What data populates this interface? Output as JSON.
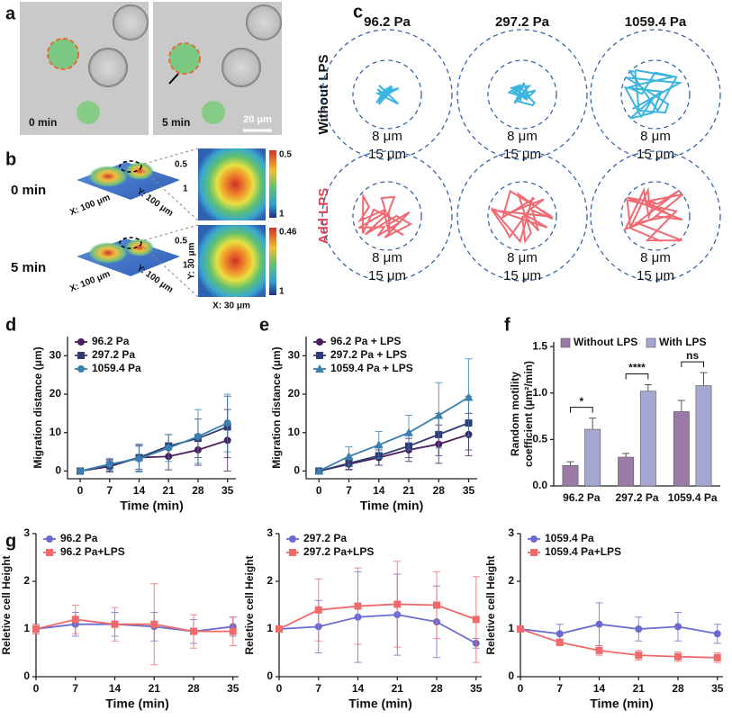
{
  "panel_labels": [
    "a",
    "b",
    "c",
    "d",
    "e",
    "f",
    "g"
  ],
  "panel_a": {
    "times": [
      "0 min",
      "5 min"
    ],
    "scale_bar": "20 μm"
  },
  "panel_b": {
    "times": [
      "0 min",
      "5 min"
    ],
    "surface_x": "X: 100 μm",
    "surface_y": "Y: 100 μm",
    "z_ticks": [
      0.5,
      1
    ],
    "colorbar_top": [
      0.5,
      0.46
    ],
    "colorbar_bottom": 1,
    "heatmap_x": "X: 30 μm",
    "heatmap_y": "Y: 30 μm"
  },
  "panel_c": {
    "columns": [
      "96.2 Pa",
      "297.2 Pa",
      "1059.4 Pa"
    ],
    "rows": [
      "Without LPS",
      "Add LPS"
    ],
    "inner": "8 μm",
    "outer": "15 μm"
  },
  "chart_data": [
    {
      "type": "line",
      "xlabel": "Time (min)",
      "ylabel": "Migration distance (μm)",
      "x": [
        0,
        7,
        14,
        21,
        28,
        35
      ],
      "xlim": [
        -3,
        37
      ],
      "xticks": [
        0,
        7,
        14,
        21,
        28,
        35
      ],
      "ylim": [
        -2,
        35
      ],
      "yticks": [
        0,
        10,
        20,
        30
      ],
      "series": [
        {
          "name": "96.2 Pa",
          "color": "#4a1d5c",
          "marker": "circle",
          "values": [
            0,
            1.2,
            3.5,
            3.8,
            5.5,
            8
          ],
          "errors": [
            0.5,
            1.5,
            3,
            3.5,
            4,
            8
          ]
        },
        {
          "name": "297.2 Pa",
          "color": "#2f3c73",
          "marker": "square",
          "values": [
            0,
            1.5,
            3.5,
            6.5,
            8.5,
            11.5
          ],
          "errors": [
            0.5,
            1.5,
            3.5,
            3,
            5,
            8
          ]
        },
        {
          "name": "1059.4 Pa",
          "color": "#3b7fae",
          "marker": "circle",
          "values": [
            0,
            1.8,
            3.2,
            6,
            9,
            12.5
          ],
          "errors": [
            0.5,
            1.5,
            3.5,
            3.5,
            7,
            7.5
          ]
        }
      ]
    },
    {
      "type": "line",
      "xlabel": "Time (min)",
      "ylabel": "Migration distance (μm)",
      "x": [
        0,
        7,
        14,
        21,
        28,
        35
      ],
      "xlim": [
        -3,
        37
      ],
      "xticks": [
        0,
        7,
        14,
        21,
        28,
        35
      ],
      "ylim": [
        -2,
        35
      ],
      "yticks": [
        0,
        10,
        20,
        30
      ],
      "series": [
        {
          "name": "96.2 Pa + LPS",
          "color": "#4a1d5c",
          "marker": "circle",
          "values": [
            0,
            1.8,
            3.5,
            5.5,
            7,
            9.5
          ],
          "errors": [
            0.5,
            1.5,
            2,
            3,
            5,
            5.5
          ]
        },
        {
          "name": "297.2 Pa + LPS",
          "color": "#2f3c73",
          "marker": "square",
          "values": [
            0,
            2,
            4,
            6.5,
            9.5,
            12.5
          ],
          "errors": [
            0.5,
            1.5,
            2.5,
            3,
            5.5,
            7
          ]
        },
        {
          "name": "1059.4 Pa + LPS",
          "color": "#3b7fae",
          "marker": "triangle",
          "values": [
            0,
            3.8,
            6.8,
            10,
            14.5,
            19.2
          ],
          "errors": [
            0.5,
            2.5,
            3.5,
            4.5,
            8.5,
            10
          ]
        }
      ]
    },
    {
      "type": "bar",
      "ylabel": [
        "Random motility",
        "coefficient (μm²/min)"
      ],
      "categories": [
        "96.2 Pa",
        "297.2 Pa",
        "1059.4 Pa"
      ],
      "ylim": [
        0,
        1.55
      ],
      "yticks": [
        {
          "value": 0,
          "label": "0.0"
        },
        0.5,
        {
          "value": 1,
          "label": "1.0"
        },
        1.5
      ],
      "series": [
        {
          "name": "Without LPS",
          "color": "#9c7aa8",
          "values": [
            0.22,
            0.31,
            0.8
          ],
          "errors": [
            0.04,
            0.04,
            0.12
          ]
        },
        {
          "name": "With LPS",
          "color": "#a3a7d2",
          "values": [
            0.61,
            1.02,
            1.08
          ],
          "errors": [
            0.12,
            0.07,
            0.14
          ]
        }
      ],
      "annotations": [
        "*",
        "****",
        "ns"
      ]
    },
    {
      "type": "line",
      "xlabel": "Time (min)",
      "ylabel": "Reletive cell Height",
      "x": [
        0,
        7,
        14,
        21,
        28,
        35
      ],
      "xlim": [
        0,
        36
      ],
      "xticks": [
        0,
        7,
        14,
        21,
        28,
        35
      ],
      "ylim": [
        0,
        3
      ],
      "yticks": [
        0,
        1,
        2,
        3
      ],
      "series": [
        {
          "name": "96.2 Pa",
          "color": "#6a6bd0",
          "marker": "circle",
          "values": [
            1,
            1.1,
            1.1,
            1.05,
            0.95,
            1.05
          ],
          "errors": [
            0.1,
            0.25,
            0.25,
            0.3,
            0.25,
            0.2
          ]
        },
        {
          "name": "96.2 Pa+LPS",
          "color": "#f06a6a",
          "marker": "square",
          "values": [
            1,
            1.2,
            1.1,
            1.1,
            0.95,
            0.95
          ],
          "errors": [
            0.1,
            0.3,
            0.35,
            0.85,
            0.35,
            0.3
          ]
        }
      ]
    },
    {
      "type": "line",
      "xlabel": "Time (min)",
      "ylabel": "Reletive cell Height",
      "x": [
        0,
        7,
        14,
        21,
        28,
        35
      ],
      "xlim": [
        0,
        36
      ],
      "xticks": [
        0,
        7,
        14,
        21,
        28,
        35
      ],
      "ylim": [
        0,
        3
      ],
      "yticks": [
        0,
        1,
        2,
        3
      ],
      "series": [
        {
          "name": "297.2 Pa",
          "color": "#6a6bd0",
          "marker": "circle",
          "values": [
            1,
            1.05,
            1.25,
            1.3,
            1.15,
            0.7
          ],
          "errors": [
            0.05,
            0.55,
            0.95,
            0.85,
            0.75,
            0.1
          ]
        },
        {
          "name": "297.2 Pa+LPS",
          "color": "#f06a6a",
          "marker": "square",
          "values": [
            1,
            1.4,
            1.48,
            1.52,
            1.5,
            1.2
          ],
          "errors": [
            0.05,
            0.65,
            0.8,
            0.9,
            0.7,
            0.9
          ]
        }
      ]
    },
    {
      "type": "line",
      "xlabel": "Time (min)",
      "ylabel": "Reletive cell Height",
      "x": [
        0,
        7,
        14,
        21,
        28,
        35
      ],
      "xlim": [
        0,
        36
      ],
      "xticks": [
        0,
        7,
        14,
        21,
        28,
        35
      ],
      "ylim": [
        0,
        3
      ],
      "yticks": [
        0,
        1,
        2,
        3
      ],
      "series": [
        {
          "name": "1059.4 Pa",
          "color": "#6a6bd0",
          "marker": "circle",
          "values": [
            1,
            0.9,
            1.1,
            1,
            1.05,
            0.9
          ],
          "errors": [
            0.05,
            0.2,
            0.45,
            0.25,
            0.3,
            0.2
          ]
        },
        {
          "name": "1059.4 Pa+LPS",
          "color": "#f06a6a",
          "marker": "square",
          "values": [
            1,
            0.72,
            0.55,
            0.45,
            0.42,
            0.4
          ],
          "errors": [
            0.05,
            0.07,
            0.1,
            0.1,
            0.1,
            0.1
          ]
        }
      ]
    }
  ]
}
